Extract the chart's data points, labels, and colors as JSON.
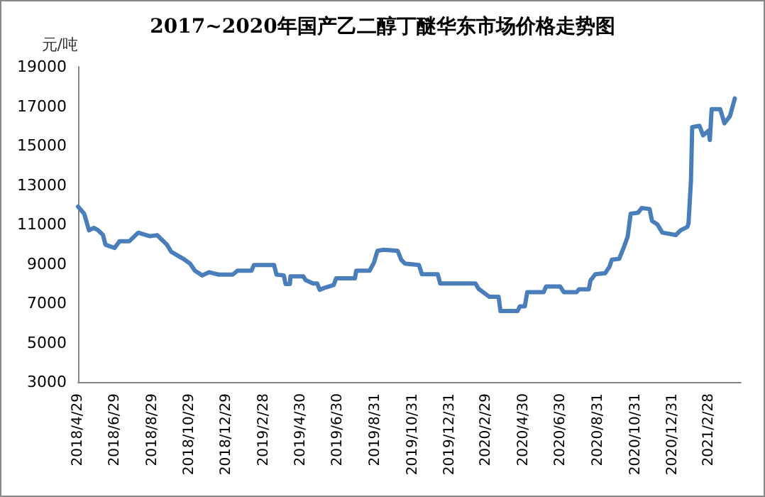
{
  "chart_data": {
    "type": "line",
    "title": "2017~2020年国产乙二醇丁醚华东市场价格走势图",
    "ylabel": "元/吨",
    "x": [
      "2018-04-29",
      "2018-05-09",
      "2018-05-17",
      "2018-05-25",
      "2018-06-01",
      "2018-06-09",
      "2018-06-13",
      "2018-06-28",
      "2018-07-06",
      "2018-07-22",
      "2018-08-06",
      "2018-08-14",
      "2018-08-25",
      "2018-09-06",
      "2018-09-22",
      "2018-09-29",
      "2018-10-19",
      "2018-10-30",
      "2018-11-07",
      "2018-11-19",
      "2018-11-30",
      "2018-12-16",
      "2019-01-08",
      "2019-01-16",
      "2019-02-08",
      "2019-02-12",
      "2019-03-17",
      "2019-03-21",
      "2019-04-02",
      "2019-04-05",
      "2019-04-12",
      "2019-04-13",
      "2019-05-04",
      "2019-05-08",
      "2019-05-20",
      "2019-05-27",
      "2019-05-31",
      "2019-06-10",
      "2019-06-23",
      "2019-06-27",
      "2019-07-28",
      "2019-07-30",
      "2019-08-21",
      "2019-08-28",
      "2019-09-03",
      "2019-09-13",
      "2019-10-06",
      "2019-10-12",
      "2019-10-18",
      "2019-11-10",
      "2019-11-15",
      "2019-12-11",
      "2019-12-15",
      "2020-02-11",
      "2020-02-16",
      "2020-03-05",
      "2020-03-20",
      "2020-03-23",
      "2020-04-20",
      "2020-04-24",
      "2020-05-02",
      "2020-05-06",
      "2020-06-02",
      "2020-06-06",
      "2020-06-29",
      "2020-07-05",
      "2020-07-26",
      "2020-07-30",
      "2020-08-15",
      "2020-08-18",
      "2020-08-26",
      "2020-09-11",
      "2020-09-18",
      "2020-09-22",
      "2020-10-04",
      "2020-10-12",
      "2020-10-18",
      "2020-10-23",
      "2020-11-04",
      "2020-11-10",
      "2020-11-23",
      "2020-11-27",
      "2020-12-06",
      "2020-12-14",
      "2021-01-05",
      "2021-01-13",
      "2021-01-24",
      "2021-01-26",
      "2021-01-30",
      "2021-02-01",
      "2021-02-13",
      "2021-02-19",
      "2021-02-28",
      "2021-03-02",
      "2021-03-05",
      "2021-03-19",
      "2021-03-26",
      "2021-04-04",
      "2021-04-12"
    ],
    "series": [
      {
        "color": "#4a7ebb",
        "values": [
          11900,
          11540,
          10700,
          10820,
          10700,
          10460,
          9970,
          9800,
          10140,
          10140,
          10580,
          10500,
          10400,
          10450,
          9970,
          9610,
          9250,
          9010,
          8650,
          8410,
          8570,
          8450,
          8450,
          8650,
          8650,
          8940,
          8940,
          8450,
          8410,
          7970,
          7970,
          8360,
          8360,
          8170,
          8000,
          8000,
          7680,
          7800,
          7920,
          8260,
          8260,
          8650,
          8650,
          9050,
          9660,
          9710,
          9660,
          9200,
          9010,
          8940,
          8470,
          8470,
          8000,
          8000,
          7730,
          7320,
          7320,
          6600,
          6600,
          6840,
          6840,
          7560,
          7560,
          7850,
          7850,
          7560,
          7560,
          7700,
          7700,
          8160,
          8470,
          8520,
          8840,
          9210,
          9250,
          9860,
          10380,
          11540,
          11590,
          11830,
          11780,
          11180,
          10990,
          10580,
          10460,
          10700,
          10870,
          11060,
          13230,
          15940,
          16000,
          15520,
          15760,
          15280,
          16850,
          16850,
          16130,
          16490,
          17390
        ]
      }
    ],
    "xlim": [
      "2018-04-29",
      "2021-04-22"
    ],
    "xticks": [
      {
        "value": "2018-04-29",
        "label": "2018/4/29"
      },
      {
        "value": "2018-06-29",
        "label": "2018/6/29"
      },
      {
        "value": "2018-08-29",
        "label": "2018/8/29"
      },
      {
        "value": "2018-10-29",
        "label": "2018/10/29"
      },
      {
        "value": "2018-12-29",
        "label": "2018/12/29"
      },
      {
        "value": "2019-02-28",
        "label": "2019/2/28"
      },
      {
        "value": "2019-04-30",
        "label": "2019/4/30"
      },
      {
        "value": "2019-06-30",
        "label": "2019/6/30"
      },
      {
        "value": "2019-08-31",
        "label": "2019/8/31"
      },
      {
        "value": "2019-10-31",
        "label": "2019/10/31"
      },
      {
        "value": "2019-12-31",
        "label": "2019/12/31"
      },
      {
        "value": "2020-02-29",
        "label": "2020/2/29"
      },
      {
        "value": "2020-04-30",
        "label": "2020/4/30"
      },
      {
        "value": "2020-06-30",
        "label": "2020/6/30"
      },
      {
        "value": "2020-08-31",
        "label": "2020/8/31"
      },
      {
        "value": "2020-10-31",
        "label": "2020/10/31"
      },
      {
        "value": "2020-12-31",
        "label": "2020/12/31"
      },
      {
        "value": "2021-02-28",
        "label": "2021/2/28"
      }
    ],
    "ylim": [
      3000,
      19000
    ],
    "yticks": [
      3000,
      5000,
      7000,
      9000,
      11000,
      13000,
      15000,
      17000,
      19000
    ],
    "grid": false,
    "marker": "none",
    "line_style": "solid"
  }
}
